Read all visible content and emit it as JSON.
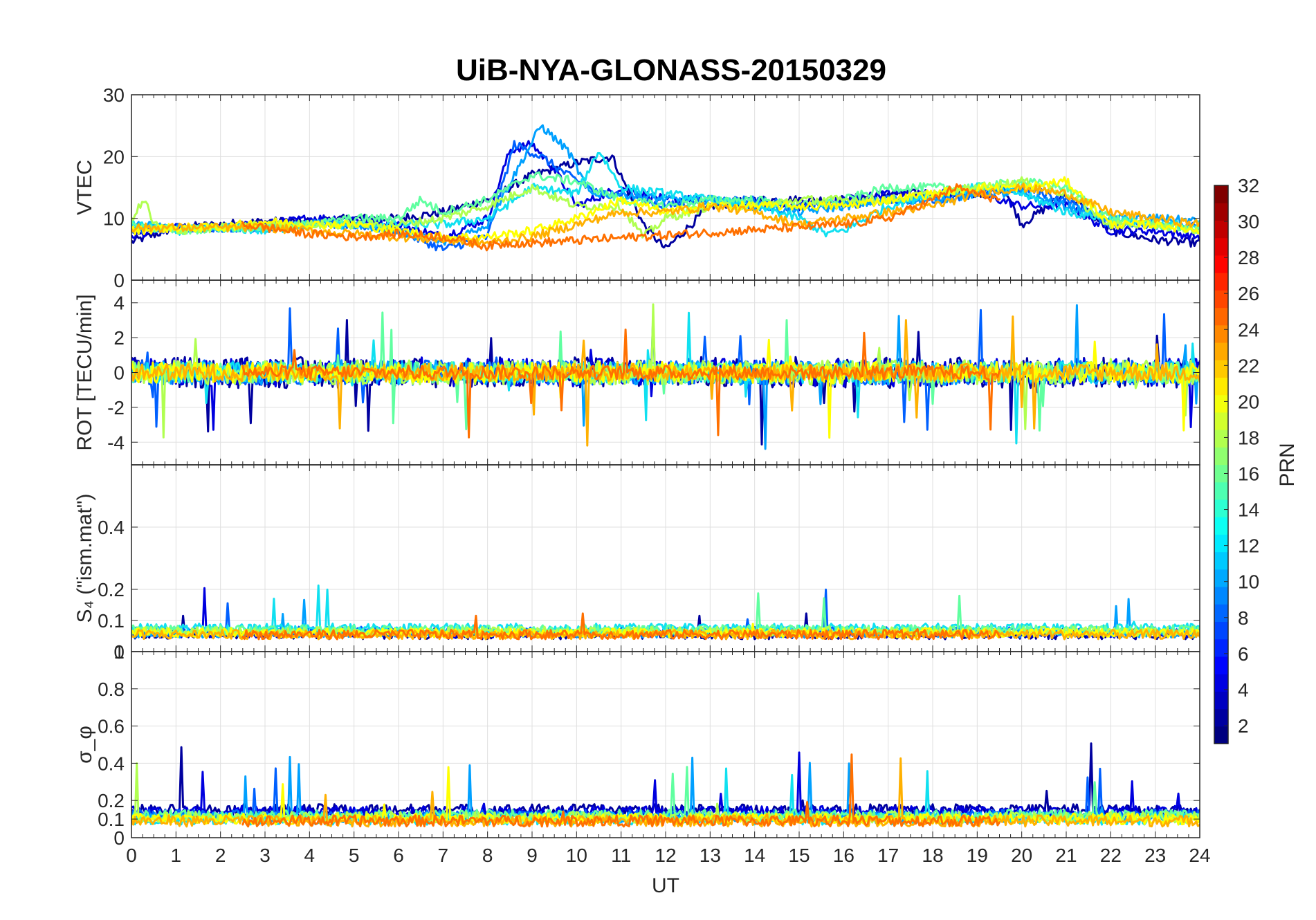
{
  "chart_data": {
    "type": "line",
    "title": "UiB-NYA-GLONASS-20150329",
    "x": {
      "label": "UT",
      "range": [
        0,
        24
      ],
      "ticks": [
        "0",
        "1",
        "2",
        "3",
        "4",
        "5",
        "6",
        "7",
        "8",
        "9",
        "10",
        "11",
        "12",
        "13",
        "14",
        "15",
        "16",
        "17",
        "18",
        "19",
        "20",
        "21",
        "22",
        "23",
        "24"
      ]
    },
    "panels": [
      {
        "id": "vtec",
        "ylabel": "VTEC",
        "ylim": [
          0,
          30
        ],
        "ytick_values": [
          0,
          10,
          20,
          30
        ],
        "ytick_labels": [
          "0",
          "10",
          "20",
          "30"
        ]
      },
      {
        "id": "rot",
        "ylabel": "ROT [TECU/min]",
        "ylim": [
          -5.3,
          5.3
        ],
        "ytick_values": [
          -4,
          -2,
          0,
          2,
          4
        ],
        "ytick_labels": [
          "-4",
          "-2",
          "0",
          "2",
          "4"
        ]
      },
      {
        "id": "s4",
        "ylabel": "S₄ (\"ism.mat\")",
        "ylim": [
          0,
          0.6
        ],
        "ytick_values": [
          0,
          0.1,
          0.2,
          0.4
        ],
        "ytick_labels": [
          "0",
          "0.1",
          "0.2",
          "0.4"
        ]
      },
      {
        "id": "sigphi",
        "ylabel": "σ_φ",
        "ylim": [
          0,
          1
        ],
        "ytick_values": [
          0,
          0.1,
          0.2,
          0.4,
          0.6,
          0.8,
          1
        ],
        "ytick_labels": [
          "0",
          "0.1",
          "0.2",
          "0.4",
          "0.6",
          "0.8",
          "1"
        ]
      }
    ],
    "colorbar": {
      "label": "PRN",
      "range": [
        1,
        32
      ],
      "tick_values": [
        2,
        4,
        6,
        8,
        10,
        12,
        14,
        16,
        18,
        20,
        22,
        24,
        26,
        28,
        30,
        32
      ],
      "tick_labels": [
        "2",
        "4",
        "6",
        "8",
        "10",
        "12",
        "14",
        "16",
        "18",
        "20",
        "22",
        "24",
        "26",
        "28",
        "30",
        "32"
      ],
      "colormap": "jet"
    },
    "series": [
      {
        "prn": 2,
        "color": "#00009f",
        "vtec": [
          [
            0,
            6.2
          ],
          [
            1,
            8.5
          ],
          [
            2,
            9
          ],
          [
            3,
            9.5
          ],
          [
            4,
            9.5
          ],
          [
            5,
            10
          ],
          [
            6,
            10
          ],
          [
            7,
            11
          ],
          [
            8,
            13
          ],
          [
            9,
            17
          ],
          [
            10,
            19
          ],
          [
            10.8,
            20
          ],
          [
            11.5,
            9
          ],
          [
            12,
            5
          ],
          [
            13,
            12
          ],
          [
            14,
            13
          ],
          [
            15,
            13
          ],
          [
            16,
            13
          ],
          [
            17,
            14
          ],
          [
            18,
            14
          ],
          [
            19,
            14
          ],
          [
            19.6,
            15
          ],
          [
            20,
            9
          ],
          [
            21,
            14
          ],
          [
            22,
            8
          ],
          [
            23,
            6.5
          ],
          [
            24,
            6
          ]
        ],
        "rot_amp": 0.9,
        "s4_base": 0.055,
        "sig_base": 0.15
      },
      {
        "prn": 4,
        "color": "#0000df",
        "vtec": [
          [
            0,
            7
          ],
          [
            1,
            8.5
          ],
          [
            2,
            8.5
          ],
          [
            3,
            9
          ],
          [
            4,
            10
          ],
          [
            5,
            10
          ],
          [
            6,
            9
          ],
          [
            7,
            7
          ],
          [
            8,
            10
          ],
          [
            8.5,
            21
          ],
          [
            9,
            22
          ],
          [
            9.5,
            18
          ],
          [
            10,
            12
          ],
          [
            11,
            15
          ],
          [
            12,
            13
          ],
          [
            13,
            13
          ],
          [
            14,
            12
          ],
          [
            15,
            12
          ],
          [
            16,
            13
          ],
          [
            17,
            14
          ],
          [
            18,
            14
          ],
          [
            19,
            14
          ],
          [
            20,
            12
          ],
          [
            21,
            12
          ],
          [
            22,
            8
          ],
          [
            23,
            8
          ],
          [
            24,
            7
          ]
        ],
        "rot_amp": 0.8,
        "s4_base": 0.06,
        "sig_base": 0.14
      },
      {
        "prn": 8,
        "color": "#0060ff",
        "vtec": [
          [
            0,
            8
          ],
          [
            1,
            8.5
          ],
          [
            2,
            8.5
          ],
          [
            3,
            8.5
          ],
          [
            4,
            9
          ],
          [
            5,
            9
          ],
          [
            6,
            8
          ],
          [
            7,
            5
          ],
          [
            8,
            7
          ],
          [
            8.6,
            22
          ],
          [
            9.2,
            20
          ],
          [
            9.8,
            17
          ],
          [
            10.5,
            14
          ],
          [
            11,
            14
          ],
          [
            12,
            12
          ],
          [
            13,
            13
          ],
          [
            14,
            13
          ],
          [
            15,
            12
          ],
          [
            16,
            12
          ],
          [
            17,
            13
          ],
          [
            18,
            13
          ],
          [
            19,
            14
          ],
          [
            20,
            15
          ],
          [
            21,
            13
          ],
          [
            22,
            9
          ],
          [
            23,
            9
          ],
          [
            24,
            8.5
          ]
        ],
        "rot_amp": 0.7,
        "s4_base": 0.065,
        "sig_base": 0.12
      },
      {
        "prn": 10,
        "color": "#00a0ff",
        "vtec": [
          [
            0,
            9
          ],
          [
            1,
            8.5
          ],
          [
            2,
            8.5
          ],
          [
            3,
            8.5
          ],
          [
            4,
            9
          ],
          [
            5,
            9
          ],
          [
            6,
            8
          ],
          [
            7,
            6
          ],
          [
            8,
            9
          ],
          [
            9.2,
            25
          ],
          [
            9.8,
            21
          ],
          [
            10.3,
            14
          ],
          [
            11,
            14
          ],
          [
            12,
            13
          ],
          [
            13,
            13
          ],
          [
            14,
            12
          ],
          [
            15,
            11
          ],
          [
            16,
            12
          ],
          [
            17,
            13
          ],
          [
            18,
            13
          ],
          [
            19,
            14
          ],
          [
            20,
            14
          ],
          [
            21,
            12
          ],
          [
            22,
            10
          ],
          [
            23,
            10
          ],
          [
            24,
            9.5
          ]
        ],
        "rot_amp": 0.7,
        "s4_base": 0.06,
        "sig_base": 0.11
      },
      {
        "prn": 13,
        "color": "#10e0f0",
        "vtec": [
          [
            0,
            9
          ],
          [
            1,
            8
          ],
          [
            2,
            8.5
          ],
          [
            3,
            8
          ],
          [
            4,
            9
          ],
          [
            5,
            9
          ],
          [
            6,
            9
          ],
          [
            7,
            9
          ],
          [
            8,
            10
          ],
          [
            9,
            15
          ],
          [
            10,
            14
          ],
          [
            10.5,
            21
          ],
          [
            11,
            15
          ],
          [
            12,
            14
          ],
          [
            13,
            13
          ],
          [
            14,
            12
          ],
          [
            15,
            10
          ],
          [
            15.6,
            7.5
          ],
          [
            16,
            8
          ],
          [
            17,
            12
          ],
          [
            18,
            14
          ],
          [
            19,
            15
          ],
          [
            20,
            14
          ],
          [
            21,
            11
          ],
          [
            22,
            10
          ],
          [
            23,
            9
          ],
          [
            24,
            9
          ]
        ],
        "rot_amp": 0.6,
        "s4_base": 0.075,
        "sig_base": 0.1
      },
      {
        "prn": 16,
        "color": "#60ffa0",
        "vtec": [
          [
            0,
            9
          ],
          [
            1,
            8
          ],
          [
            2,
            8.5
          ],
          [
            3,
            8.5
          ],
          [
            4,
            9
          ],
          [
            5,
            10
          ],
          [
            6,
            10
          ],
          [
            6.5,
            13
          ],
          [
            7,
            11
          ],
          [
            8,
            13
          ],
          [
            9,
            17
          ],
          [
            10,
            16
          ],
          [
            11,
            13
          ],
          [
            12,
            12
          ],
          [
            13,
            13
          ],
          [
            14,
            13
          ],
          [
            15,
            12
          ],
          [
            16,
            13
          ],
          [
            17,
            15
          ],
          [
            18,
            15
          ],
          [
            19,
            15
          ],
          [
            20,
            16
          ],
          [
            21,
            15
          ],
          [
            22,
            10
          ],
          [
            23,
            9
          ],
          [
            24,
            8
          ]
        ],
        "rot_amp": 0.6,
        "s4_base": 0.07,
        "sig_base": 0.12
      },
      {
        "prn": 18,
        "color": "#b0ff50",
        "vtec": [
          [
            0,
            10
          ],
          [
            0.3,
            13
          ],
          [
            0.5,
            9
          ],
          [
            1,
            8
          ],
          [
            2,
            8.5
          ],
          [
            3,
            9
          ],
          [
            4,
            9
          ],
          [
            5,
            9
          ],
          [
            6,
            9
          ],
          [
            7,
            10
          ],
          [
            8,
            12
          ],
          [
            9,
            15
          ],
          [
            10,
            12
          ],
          [
            11,
            12
          ],
          [
            11.5,
            7
          ],
          [
            12,
            10
          ],
          [
            13,
            12
          ],
          [
            14,
            12
          ],
          [
            15,
            13
          ],
          [
            16,
            13
          ],
          [
            17,
            13
          ],
          [
            18,
            14
          ],
          [
            19,
            15
          ],
          [
            20,
            16
          ],
          [
            21,
            14
          ],
          [
            22,
            9
          ],
          [
            23,
            9
          ],
          [
            24,
            8
          ]
        ],
        "rot_amp": 0.7,
        "s4_base": 0.065,
        "sig_base": 0.11
      },
      {
        "prn": 20,
        "color": "#ffff00",
        "vtec": [
          [
            0,
            8
          ],
          [
            1,
            8.5
          ],
          [
            2,
            8.5
          ],
          [
            3,
            9.5
          ],
          [
            4,
            9
          ],
          [
            5,
            9
          ],
          [
            6,
            8
          ],
          [
            7,
            7
          ],
          [
            8,
            7
          ],
          [
            9,
            8
          ],
          [
            10,
            10
          ],
          [
            11,
            13
          ],
          [
            12,
            11
          ],
          [
            13,
            12
          ],
          [
            14,
            12
          ],
          [
            15,
            12
          ],
          [
            16,
            12
          ],
          [
            17,
            13
          ],
          [
            18,
            14
          ],
          [
            19,
            15
          ],
          [
            20,
            15
          ],
          [
            21,
            16
          ],
          [
            22,
            9
          ],
          [
            23,
            9
          ],
          [
            24,
            8
          ]
        ],
        "rot_amp": 0.6,
        "s4_base": 0.06,
        "sig_base": 0.1
      },
      {
        "prn": 22,
        "color": "#ffb000",
        "vtec": [
          [
            0,
            8.5
          ],
          [
            1,
            8.5
          ],
          [
            2,
            8.5
          ],
          [
            3,
            8.5
          ],
          [
            4,
            8
          ],
          [
            5,
            7.5
          ],
          [
            6,
            7
          ],
          [
            7,
            6.5
          ],
          [
            8,
            6
          ],
          [
            9,
            7
          ],
          [
            10,
            9
          ],
          [
            11,
            11
          ],
          [
            12,
            11
          ],
          [
            13,
            12
          ],
          [
            14,
            11
          ],
          [
            15,
            9
          ],
          [
            16,
            10
          ],
          [
            17,
            11
          ],
          [
            18,
            12
          ],
          [
            19,
            14
          ],
          [
            20,
            15
          ],
          [
            21,
            14
          ],
          [
            22,
            11
          ],
          [
            23,
            10
          ],
          [
            24,
            9
          ]
        ],
        "rot_amp": 0.5,
        "s4_base": 0.055,
        "sig_base": 0.09
      },
      {
        "prn": 24,
        "color": "#ff7000",
        "vtec": [
          [
            2.5,
            9
          ],
          [
            3,
            8.5
          ],
          [
            4,
            7.5
          ],
          [
            5,
            7
          ],
          [
            6,
            7.5
          ],
          [
            7,
            7
          ],
          [
            8,
            5.5
          ],
          [
            8.5,
            6
          ],
          [
            9,
            6
          ],
          [
            16,
            9
          ],
          [
            17,
            10
          ],
          [
            18,
            13
          ],
          [
            18.5,
            15
          ],
          [
            19,
            14
          ],
          [
            19.5,
            13
          ]
        ],
        "rot_amp": 0.4,
        "s4_base": 0.055,
        "sig_base": 0.09
      }
    ]
  }
}
